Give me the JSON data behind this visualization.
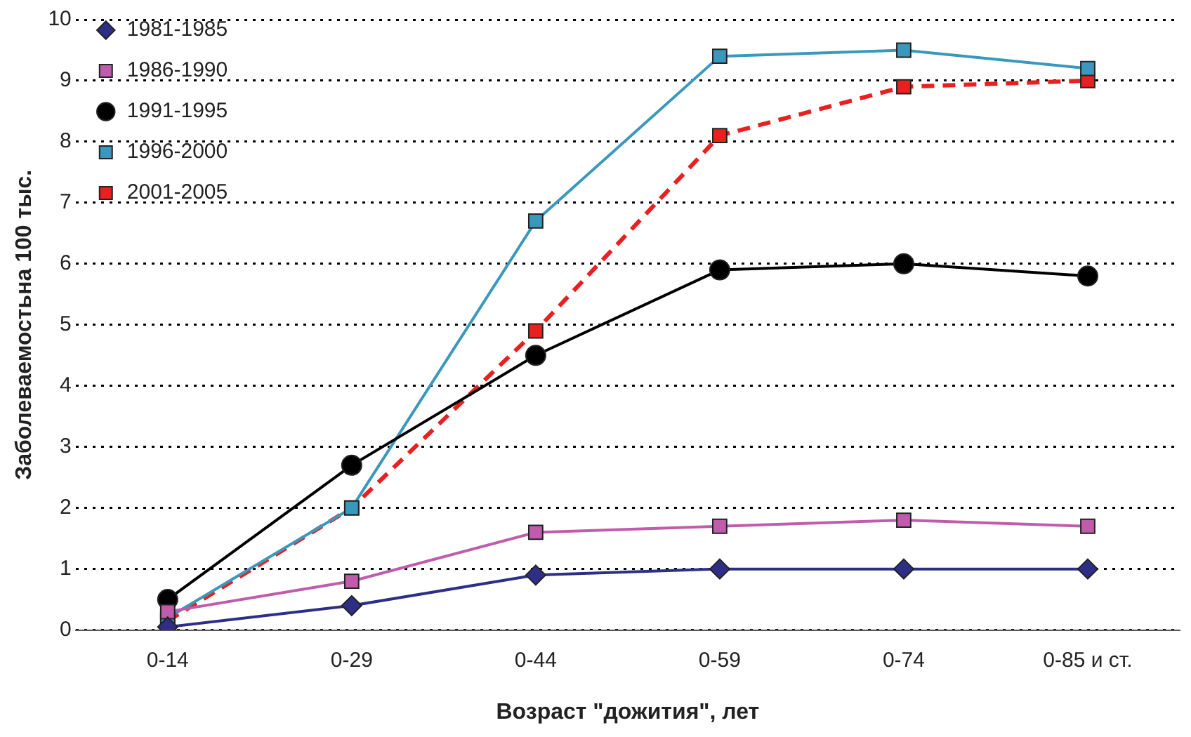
{
  "chart_data": {
    "type": "line",
    "xlabel": "Возраст \"дожития\", лет",
    "ylabel": "Заболеваемостьна 100 тыс.",
    "categories": [
      "0-14",
      "0-29",
      "0-44",
      "0-59",
      "0-74",
      "0-85 и ст."
    ],
    "series": [
      {
        "name": "1981-1985",
        "color": "#2e2e86",
        "marker": "diamond",
        "values": [
          0.05,
          0.4,
          0.9,
          1.0,
          1.0,
          1.0
        ]
      },
      {
        "name": "1986-1990",
        "color": "#c05cac",
        "marker": "square",
        "values": [
          0.3,
          0.8,
          1.6,
          1.7,
          1.8,
          1.7
        ]
      },
      {
        "name": "1991-1995",
        "color": "#000000",
        "marker": "circle",
        "values": [
          0.5,
          2.7,
          4.5,
          5.9,
          6.0,
          5.8
        ]
      },
      {
        "name": "1996-2000",
        "color": "#3a98bc",
        "marker": "square",
        "values": [
          0.2,
          2.0,
          6.7,
          9.4,
          9.5,
          9.2
        ]
      },
      {
        "name": "2001-2005",
        "color": "#e82020",
        "marker": "square",
        "line_style": "dashed",
        "values": [
          0.15,
          2.0,
          4.9,
          8.1,
          8.9,
          9.0
        ]
      }
    ],
    "ylim": [
      0,
      10
    ],
    "yticks": [
      0,
      1,
      2,
      3,
      4,
      5,
      6,
      7,
      8,
      9,
      10
    ],
    "grid": "y",
    "legend": "top left"
  }
}
